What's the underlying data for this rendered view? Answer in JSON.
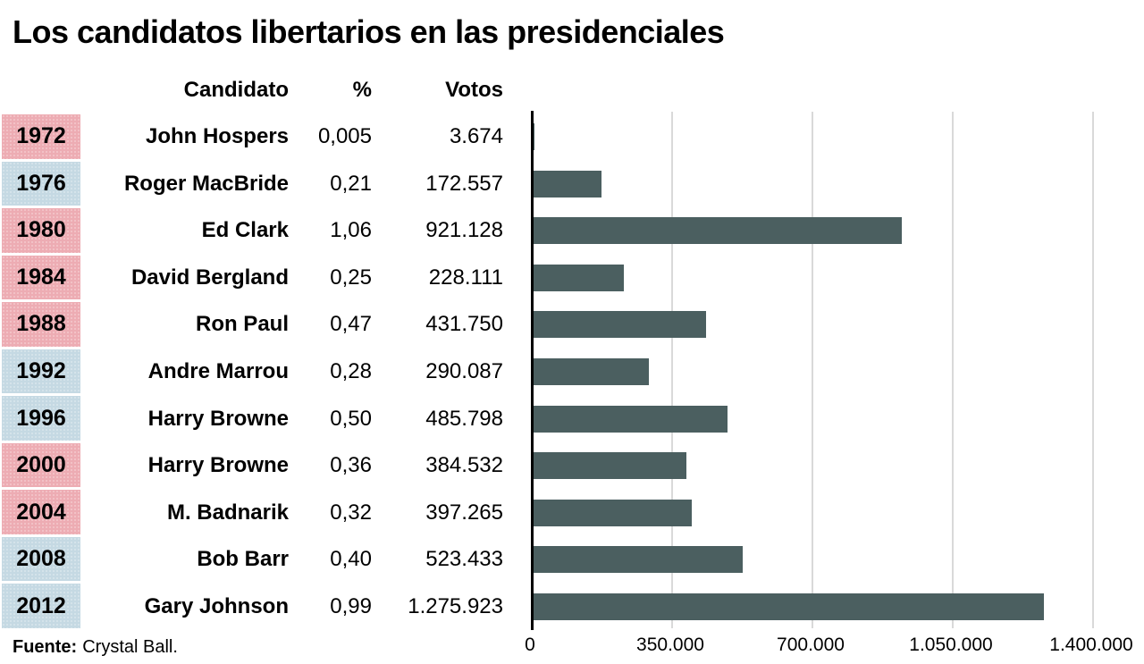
{
  "title": "Los candidatos libertarios en las presidenciales",
  "table": {
    "headers": {
      "candidate": "Candidato",
      "percent": "%",
      "votes": "Votos"
    },
    "rows": [
      {
        "year": "1972",
        "candidate": "John Hospers",
        "percent": "0,005",
        "votes": "3.674",
        "votes_n": 3674,
        "highlight": "pink"
      },
      {
        "year": "1976",
        "candidate": "Roger MacBride",
        "percent": "0,21",
        "votes": "172.557",
        "votes_n": 172557,
        "highlight": "blue"
      },
      {
        "year": "1980",
        "candidate": "Ed Clark",
        "percent": "1,06",
        "votes": "921.128",
        "votes_n": 921128,
        "highlight": "pink"
      },
      {
        "year": "1984",
        "candidate": "David Bergland",
        "percent": "0,25",
        "votes": "228.111",
        "votes_n": 228111,
        "highlight": "pink"
      },
      {
        "year": "1988",
        "candidate": "Ron Paul",
        "percent": "0,47",
        "votes": "431.750",
        "votes_n": 431750,
        "highlight": "pink"
      },
      {
        "year": "1992",
        "candidate": "Andre Marrou",
        "percent": "0,28",
        "votes": "290.087",
        "votes_n": 290087,
        "highlight": "blue"
      },
      {
        "year": "1996",
        "candidate": "Harry Browne",
        "percent": "0,50",
        "votes": "485.798",
        "votes_n": 485798,
        "highlight": "blue"
      },
      {
        "year": "2000",
        "candidate": "Harry Browne",
        "percent": "0,36",
        "votes": "384.532",
        "votes_n": 384532,
        "highlight": "pink"
      },
      {
        "year": "2004",
        "candidate": "M. Badnarik",
        "percent": "0,32",
        "votes": "397.265",
        "votes_n": 397265,
        "highlight": "pink"
      },
      {
        "year": "2008",
        "candidate": "Bob Barr",
        "percent": "0,40",
        "votes": "523.433",
        "votes_n": 523433,
        "highlight": "blue"
      },
      {
        "year": "2012",
        "candidate": "Gary Johnson",
        "percent": "0,99",
        "votes": "1.275.923",
        "votes_n": 1275923,
        "highlight": "blue"
      }
    ]
  },
  "chart_data": {
    "type": "bar",
    "orientation": "horizontal",
    "title": "Los candidatos libertarios en las presidenciales",
    "categories": [
      "1972",
      "1976",
      "1980",
      "1984",
      "1988",
      "1992",
      "1996",
      "2000",
      "2004",
      "2008",
      "2012"
    ],
    "series": [
      {
        "name": "Votos",
        "values": [
          3674,
          172557,
          921128,
          228111,
          431750,
          290087,
          485798,
          384532,
          397265,
          523433,
          1275923
        ]
      }
    ],
    "percent_values": [
      0.005,
      0.21,
      1.06,
      0.25,
      0.47,
      0.28,
      0.5,
      0.36,
      0.32,
      0.4,
      0.99
    ],
    "xlim": [
      0,
      1400000
    ],
    "x_ticks": [
      0,
      350000,
      700000,
      1050000,
      1400000
    ],
    "x_tick_labels": [
      "0",
      "350.000",
      "700.000",
      "1.050.000",
      "1.400.000"
    ],
    "grid": true,
    "legend": "none"
  },
  "footer": {
    "source_label": "Fuente:",
    "source_text": "Crystal Ball."
  },
  "colors": {
    "pink": "#edacb3",
    "blue": "#c5d9e3",
    "bar": "#4b5f60",
    "gridline": "#d9d9d9",
    "axis": "#000000",
    "text": "#000000",
    "background": "#ffffff"
  }
}
